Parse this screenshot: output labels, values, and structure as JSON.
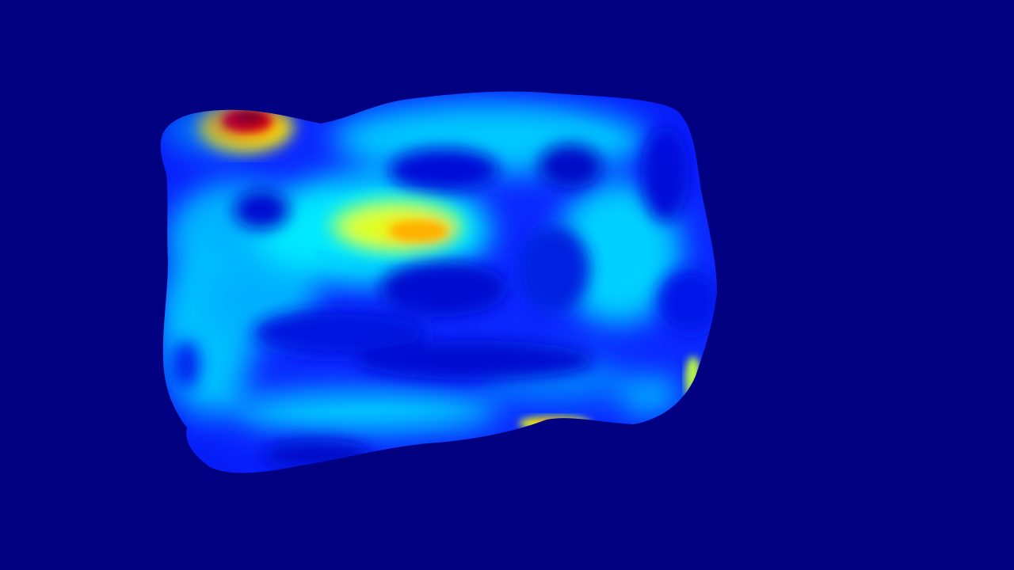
{
  "scene": {
    "background_color": "#000080",
    "object": "deformed-box-mesh",
    "colormap": "jet",
    "colormap_stops": [
      "#000080",
      "#0000ff",
      "#00ffff",
      "#ffff00",
      "#ff0000",
      "#800000"
    ]
  }
}
